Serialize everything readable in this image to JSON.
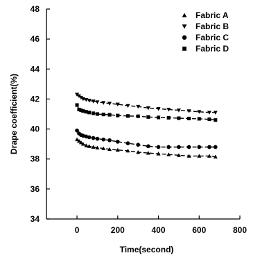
{
  "chart_data": {
    "type": "scatter",
    "title": "",
    "xlabel": "Time(second)",
    "ylabel": "Drape coefficient(%)",
    "xlim": [
      -150,
      800
    ],
    "ylim": [
      34,
      48
    ],
    "xticks": [
      0,
      200,
      400,
      600,
      800
    ],
    "yticks": [
      34,
      36,
      38,
      40,
      42,
      44,
      46,
      48
    ],
    "grid": false,
    "legend_position": "top-right",
    "series": [
      {
        "name": "Fabric A",
        "marker": "triangle-up",
        "x": [
          0,
          10,
          20,
          30,
          45,
          60,
          80,
          100,
          130,
          160,
          200,
          250,
          300,
          350,
          400,
          450,
          500,
          550,
          600,
          650,
          680
        ],
        "y": [
          39.3,
          39.2,
          39.1,
          39.0,
          38.9,
          38.85,
          38.8,
          38.75,
          38.7,
          38.65,
          38.6,
          38.55,
          38.45,
          38.4,
          38.35,
          38.3,
          38.25,
          38.2,
          38.2,
          38.2,
          38.15
        ]
      },
      {
        "name": "Fabric B",
        "marker": "triangle-down",
        "x": [
          0,
          10,
          20,
          30,
          45,
          60,
          80,
          100,
          130,
          160,
          200,
          250,
          300,
          350,
          400,
          450,
          500,
          550,
          600,
          650,
          680
        ],
        "y": [
          42.3,
          42.2,
          42.1,
          42.0,
          41.95,
          41.9,
          41.85,
          41.8,
          41.75,
          41.7,
          41.65,
          41.55,
          41.5,
          41.4,
          41.35,
          41.3,
          41.25,
          41.2,
          41.15,
          41.1,
          41.1
        ]
      },
      {
        "name": "Fabric C",
        "marker": "circle",
        "x": [
          0,
          10,
          20,
          30,
          45,
          60,
          80,
          100,
          130,
          160,
          200,
          250,
          300,
          350,
          400,
          450,
          500,
          550,
          600,
          650,
          680
        ],
        "y": [
          39.9,
          39.7,
          39.6,
          39.55,
          39.5,
          39.45,
          39.4,
          39.35,
          39.3,
          39.25,
          39.15,
          39.05,
          38.95,
          38.85,
          38.8,
          38.8,
          38.8,
          38.8,
          38.8,
          38.8,
          38.8
        ]
      },
      {
        "name": "Fabric D",
        "marker": "square",
        "x": [
          0,
          10,
          20,
          30,
          45,
          60,
          80,
          100,
          130,
          160,
          200,
          250,
          300,
          350,
          400,
          450,
          500,
          550,
          600,
          650,
          680
        ],
        "y": [
          41.6,
          41.3,
          41.25,
          41.2,
          41.15,
          41.1,
          41.05,
          41.0,
          40.97,
          40.95,
          40.9,
          40.87,
          40.85,
          40.8,
          40.77,
          40.75,
          40.72,
          40.7,
          40.68,
          40.65,
          40.6
        ]
      }
    ]
  }
}
